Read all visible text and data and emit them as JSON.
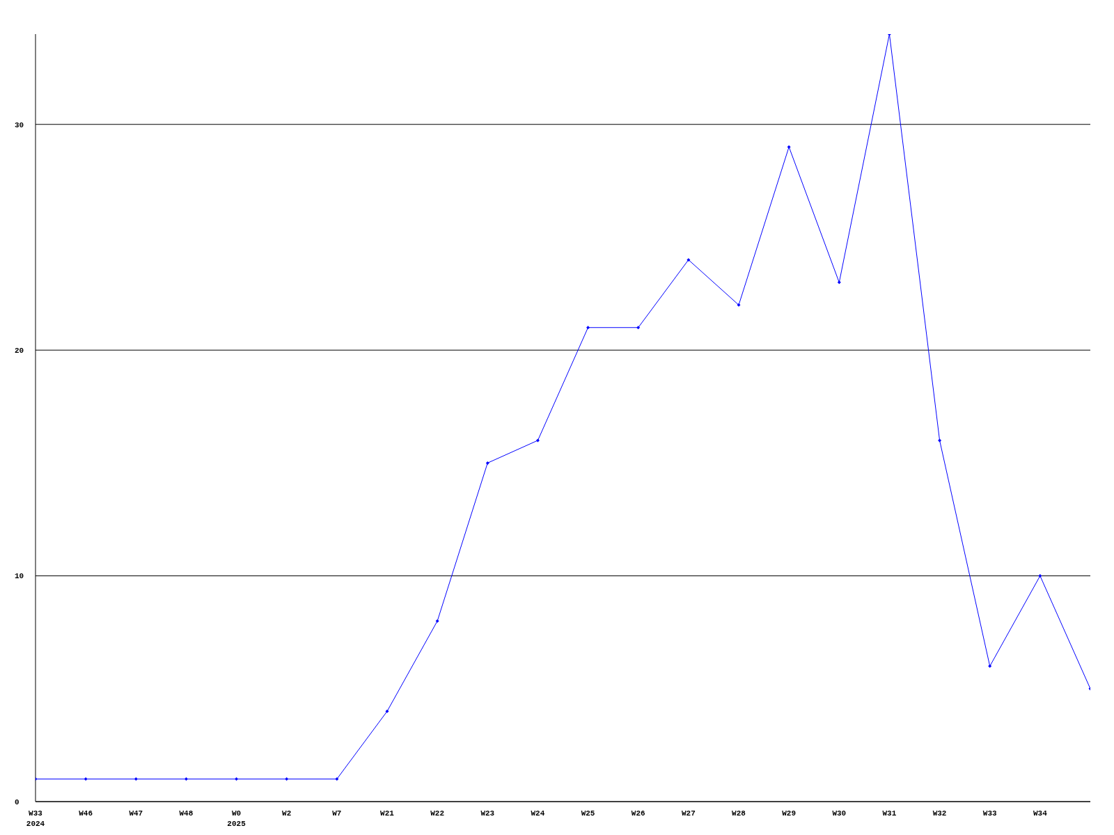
{
  "chart_data": {
    "type": "line",
    "categories": [
      "W33\n2024",
      "W46",
      "W47",
      "W48",
      "W0\n2025",
      "W2",
      "W7",
      "W21",
      "W22",
      "W23",
      "W24",
      "W25",
      "W26",
      "W27",
      "W28",
      "W29",
      "W30",
      "W31",
      "W32",
      "W33",
      "W34",
      null
    ],
    "series": [
      {
        "color": "#0000ff",
        "values": [
          1,
          1,
          1,
          1,
          1,
          1,
          1,
          4,
          8,
          15,
          16,
          21,
          21,
          24,
          22,
          29,
          23,
          34,
          16,
          6,
          10,
          5
        ]
      }
    ],
    "ylim": [
      0,
      34
    ],
    "yticks": [
      0,
      10,
      20,
      30
    ],
    "grid": "y",
    "marker": "diamond",
    "line_style": "solid"
  }
}
